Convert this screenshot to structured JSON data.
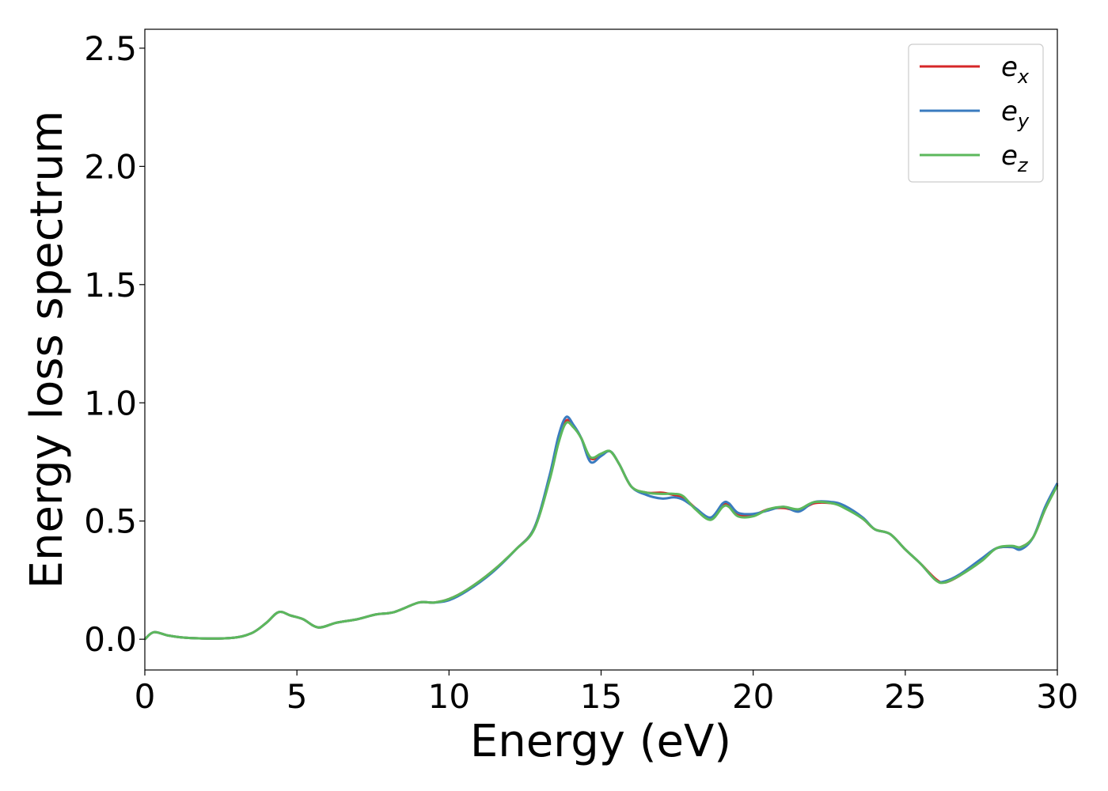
{
  "chart_data": {
    "type": "line",
    "title": "",
    "xlabel": "Energy (eV)",
    "ylabel": "Energy loss spectrum",
    "xlim": [
      0,
      30
    ],
    "ylim": [
      -0.13,
      2.58
    ],
    "xticks": [
      0,
      5,
      10,
      15,
      20,
      25,
      30
    ],
    "xtick_labels": [
      "0",
      "5",
      "10",
      "15",
      "20",
      "25",
      "30"
    ],
    "yticks": [
      0.0,
      0.5,
      1.0,
      1.5,
      2.0,
      2.5
    ],
    "ytick_labels": [
      "0.0",
      "0.5",
      "1.0",
      "1.5",
      "2.0",
      "2.5"
    ],
    "grid": false,
    "legend": {
      "position": "top-right"
    },
    "series": [
      {
        "name": "e",
        "subscript": "x",
        "color": "#d62728",
        "points": [
          [
            0,
            0
          ],
          [
            0.3,
            0.03
          ],
          [
            0.8,
            0.015
          ],
          [
            1.5,
            0.005
          ],
          [
            2.8,
            0.005
          ],
          [
            3.5,
            0.025
          ],
          [
            4.0,
            0.07
          ],
          [
            4.4,
            0.115
          ],
          [
            4.8,
            0.1
          ],
          [
            5.2,
            0.085
          ],
          [
            5.7,
            0.05
          ],
          [
            6.3,
            0.07
          ],
          [
            7.0,
            0.085
          ],
          [
            7.6,
            0.105
          ],
          [
            8.2,
            0.115
          ],
          [
            9.0,
            0.155
          ],
          [
            9.5,
            0.155
          ],
          [
            10.0,
            0.17
          ],
          [
            10.6,
            0.21
          ],
          [
            11.4,
            0.285
          ],
          [
            12.2,
            0.38
          ],
          [
            12.8,
            0.47
          ],
          [
            13.3,
            0.68
          ],
          [
            13.6,
            0.84
          ],
          [
            13.85,
            0.925
          ],
          [
            14.1,
            0.9
          ],
          [
            14.35,
            0.85
          ],
          [
            14.65,
            0.765
          ],
          [
            15.0,
            0.78
          ],
          [
            15.3,
            0.795
          ],
          [
            15.6,
            0.74
          ],
          [
            16.0,
            0.645
          ],
          [
            16.5,
            0.62
          ],
          [
            17.0,
            0.62
          ],
          [
            17.4,
            0.61
          ],
          [
            17.7,
            0.6
          ],
          [
            18.1,
            0.555
          ],
          [
            18.6,
            0.51
          ],
          [
            19.0,
            0.565
          ],
          [
            19.2,
            0.57
          ],
          [
            19.5,
            0.525
          ],
          [
            20.0,
            0.525
          ],
          [
            20.5,
            0.55
          ],
          [
            21.0,
            0.555
          ],
          [
            21.5,
            0.545
          ],
          [
            22.0,
            0.575
          ],
          [
            22.6,
            0.575
          ],
          [
            23.0,
            0.56
          ],
          [
            23.6,
            0.51
          ],
          [
            24.0,
            0.465
          ],
          [
            24.5,
            0.445
          ],
          [
            25.0,
            0.38
          ],
          [
            25.5,
            0.32
          ],
          [
            26.0,
            0.255
          ],
          [
            26.3,
            0.24
          ],
          [
            26.8,
            0.27
          ],
          [
            27.5,
            0.335
          ],
          [
            28.0,
            0.385
          ],
          [
            28.5,
            0.39
          ],
          [
            28.8,
            0.39
          ],
          [
            29.2,
            0.43
          ],
          [
            29.6,
            0.55
          ],
          [
            30,
            0.655
          ]
        ]
      },
      {
        "name": "e",
        "subscript": "y",
        "color": "#3a7bbf",
        "points": [
          [
            0,
            0
          ],
          [
            0.3,
            0.03
          ],
          [
            0.8,
            0.015
          ],
          [
            1.5,
            0.005
          ],
          [
            2.8,
            0.005
          ],
          [
            3.5,
            0.025
          ],
          [
            4.0,
            0.07
          ],
          [
            4.4,
            0.115
          ],
          [
            4.8,
            0.1
          ],
          [
            5.2,
            0.085
          ],
          [
            5.7,
            0.05
          ],
          [
            6.3,
            0.07
          ],
          [
            7.0,
            0.085
          ],
          [
            7.6,
            0.105
          ],
          [
            8.2,
            0.115
          ],
          [
            9.0,
            0.155
          ],
          [
            9.5,
            0.155
          ],
          [
            10.0,
            0.165
          ],
          [
            10.6,
            0.205
          ],
          [
            11.4,
            0.28
          ],
          [
            12.2,
            0.38
          ],
          [
            12.8,
            0.47
          ],
          [
            13.3,
            0.69
          ],
          [
            13.6,
            0.86
          ],
          [
            13.85,
            0.94
          ],
          [
            14.1,
            0.905
          ],
          [
            14.35,
            0.85
          ],
          [
            14.65,
            0.75
          ],
          [
            15.0,
            0.775
          ],
          [
            15.3,
            0.795
          ],
          [
            15.6,
            0.74
          ],
          [
            16.0,
            0.645
          ],
          [
            16.5,
            0.61
          ],
          [
            17.0,
            0.595
          ],
          [
            17.4,
            0.6
          ],
          [
            17.7,
            0.59
          ],
          [
            18.1,
            0.555
          ],
          [
            18.6,
            0.515
          ],
          [
            19.0,
            0.575
          ],
          [
            19.2,
            0.575
          ],
          [
            19.5,
            0.535
          ],
          [
            20.0,
            0.53
          ],
          [
            20.5,
            0.545
          ],
          [
            21.0,
            0.56
          ],
          [
            21.5,
            0.54
          ],
          [
            22.0,
            0.58
          ],
          [
            22.6,
            0.58
          ],
          [
            23.0,
            0.565
          ],
          [
            23.6,
            0.515
          ],
          [
            24.0,
            0.465
          ],
          [
            24.5,
            0.445
          ],
          [
            25.0,
            0.38
          ],
          [
            25.5,
            0.32
          ],
          [
            26.0,
            0.25
          ],
          [
            26.3,
            0.245
          ],
          [
            26.8,
            0.275
          ],
          [
            27.5,
            0.34
          ],
          [
            28.0,
            0.385
          ],
          [
            28.5,
            0.39
          ],
          [
            28.8,
            0.38
          ],
          [
            29.2,
            0.43
          ],
          [
            29.6,
            0.56
          ],
          [
            30,
            0.66
          ]
        ]
      },
      {
        "name": "e",
        "subscript": "z",
        "color": "#5cb85c",
        "points": [
          [
            0,
            0
          ],
          [
            0.3,
            0.03
          ],
          [
            0.8,
            0.015
          ],
          [
            1.5,
            0.005
          ],
          [
            2.8,
            0.005
          ],
          [
            3.5,
            0.025
          ],
          [
            4.0,
            0.07
          ],
          [
            4.4,
            0.115
          ],
          [
            4.8,
            0.1
          ],
          [
            5.2,
            0.085
          ],
          [
            5.7,
            0.05
          ],
          [
            6.3,
            0.07
          ],
          [
            7.0,
            0.085
          ],
          [
            7.6,
            0.105
          ],
          [
            8.2,
            0.115
          ],
          [
            9.0,
            0.155
          ],
          [
            9.5,
            0.155
          ],
          [
            10.0,
            0.17
          ],
          [
            10.6,
            0.21
          ],
          [
            11.4,
            0.285
          ],
          [
            12.2,
            0.38
          ],
          [
            12.8,
            0.465
          ],
          [
            13.3,
            0.67
          ],
          [
            13.6,
            0.83
          ],
          [
            13.85,
            0.915
          ],
          [
            14.1,
            0.895
          ],
          [
            14.35,
            0.85
          ],
          [
            14.65,
            0.77
          ],
          [
            15.0,
            0.785
          ],
          [
            15.3,
            0.795
          ],
          [
            15.6,
            0.74
          ],
          [
            16.0,
            0.645
          ],
          [
            16.5,
            0.62
          ],
          [
            17.0,
            0.615
          ],
          [
            17.4,
            0.615
          ],
          [
            17.7,
            0.605
          ],
          [
            18.1,
            0.55
          ],
          [
            18.6,
            0.505
          ],
          [
            19.0,
            0.56
          ],
          [
            19.2,
            0.56
          ],
          [
            19.5,
            0.52
          ],
          [
            20.0,
            0.52
          ],
          [
            20.5,
            0.55
          ],
          [
            21.0,
            0.56
          ],
          [
            21.5,
            0.55
          ],
          [
            22.0,
            0.58
          ],
          [
            22.6,
            0.575
          ],
          [
            23.0,
            0.555
          ],
          [
            23.6,
            0.51
          ],
          [
            24.0,
            0.465
          ],
          [
            24.5,
            0.445
          ],
          [
            25.0,
            0.38
          ],
          [
            25.5,
            0.32
          ],
          [
            26.0,
            0.25
          ],
          [
            26.3,
            0.24
          ],
          [
            26.8,
            0.27
          ],
          [
            27.5,
            0.33
          ],
          [
            28.0,
            0.385
          ],
          [
            28.5,
            0.395
          ],
          [
            28.8,
            0.39
          ],
          [
            29.2,
            0.43
          ],
          [
            29.6,
            0.55
          ],
          [
            30,
            0.65
          ]
        ]
      }
    ]
  }
}
